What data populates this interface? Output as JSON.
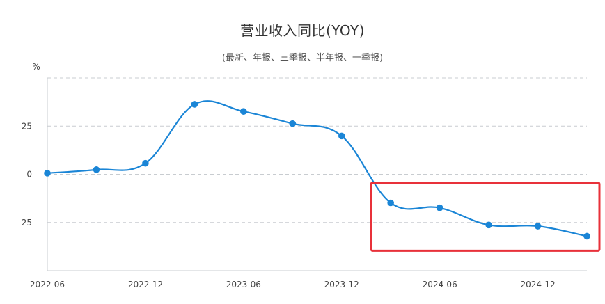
{
  "chart_data": {
    "type": "line",
    "title": "营业收入同比(YOY)",
    "subtitle": "(最新、年报、三季报、半年报、一季报)",
    "ylabel": "%",
    "xlabel": "",
    "x_ticks": [
      "2022-06",
      "2022-12",
      "2023-06",
      "2023-12",
      "2024-06",
      "2024-12"
    ],
    "y_ticks": [
      25,
      0,
      -25
    ],
    "ylim": [
      -50,
      50
    ],
    "grid": true,
    "legend": "none",
    "series": [
      {
        "x": [
          "2022-06",
          "2022-09",
          "2022-12",
          "2023-03",
          "2023-06",
          "2023-09",
          "2023-12",
          "2024-03",
          "2024-06",
          "2024-09",
          "2024-12",
          "2025-03"
        ],
        "values": [
          0.6,
          2.4,
          5.7,
          36.3,
          32.6,
          26.3,
          19.9,
          -14.8,
          -17.4,
          -26.3,
          -26.9,
          -32.1
        ]
      }
    ],
    "highlight": {
      "from": "2024-03",
      "to": "2025-03",
      "color": "#e8313a"
    },
    "colors": {
      "line": "#1a85d6",
      "point": "#1a85d6",
      "grid": "#c8ccd0",
      "axis": "#c8ccd0"
    }
  }
}
